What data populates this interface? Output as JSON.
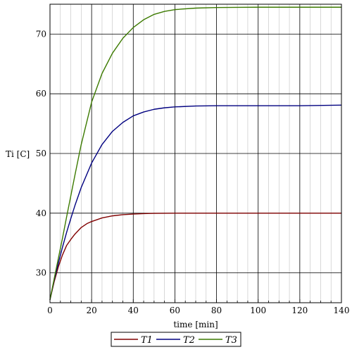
{
  "chart_data": {
    "type": "line",
    "title": "",
    "xlabel": "time [min]",
    "ylabel": "Ti [C]",
    "xlim": [
      0,
      140
    ],
    "ylim": [
      25,
      75
    ],
    "x_ticks": [
      0,
      20,
      40,
      60,
      80,
      100,
      120,
      140
    ],
    "y_ticks": [
      30,
      40,
      50,
      60,
      70
    ],
    "grid": true,
    "legend_position": "bottom-center",
    "series": [
      {
        "name": "T1",
        "color": "#800000",
        "x": [
          0,
          2,
          4,
          6,
          8,
          10,
          12,
          15,
          18,
          20,
          25,
          30,
          35,
          40,
          45,
          50,
          60,
          80,
          100,
          120,
          140
        ],
        "y": [
          25.5,
          28.5,
          31.0,
          33.0,
          34.6,
          35.6,
          36.5,
          37.6,
          38.3,
          38.6,
          39.2,
          39.55,
          39.75,
          39.85,
          39.93,
          39.97,
          40.0,
          40.0,
          40.0,
          40.0,
          40.0
        ]
      },
      {
        "name": "T2",
        "color": "#000080",
        "x": [
          0,
          2,
          4,
          6,
          8,
          10,
          12,
          15,
          20,
          25,
          30,
          35,
          40,
          45,
          50,
          55,
          60,
          70,
          80,
          100,
          120,
          140
        ],
        "y": [
          25.5,
          28.8,
          31.6,
          34.3,
          36.8,
          39.1,
          41.3,
          44.3,
          48.4,
          51.5,
          53.7,
          55.2,
          56.3,
          56.95,
          57.4,
          57.65,
          57.8,
          57.95,
          58.0,
          58.0,
          58.0,
          58.1
        ]
      },
      {
        "name": "T3",
        "color": "#3c7a00",
        "x": [
          0,
          2,
          4,
          6,
          8,
          10,
          12,
          15,
          20,
          25,
          30,
          35,
          40,
          45,
          50,
          55,
          60,
          70,
          80,
          90,
          100,
          120,
          140
        ],
        "y": [
          25.5,
          29.0,
          32.4,
          35.8,
          39.4,
          42.9,
          46.4,
          51.5,
          58.6,
          63.4,
          66.8,
          69.3,
          71.1,
          72.4,
          73.3,
          73.8,
          74.1,
          74.35,
          74.45,
          74.48,
          74.5,
          74.5,
          74.5
        ]
      }
    ]
  },
  "colors": {
    "grid": "#000000",
    "minor_grid": "#bfbfbf",
    "background": "#ffffff"
  }
}
